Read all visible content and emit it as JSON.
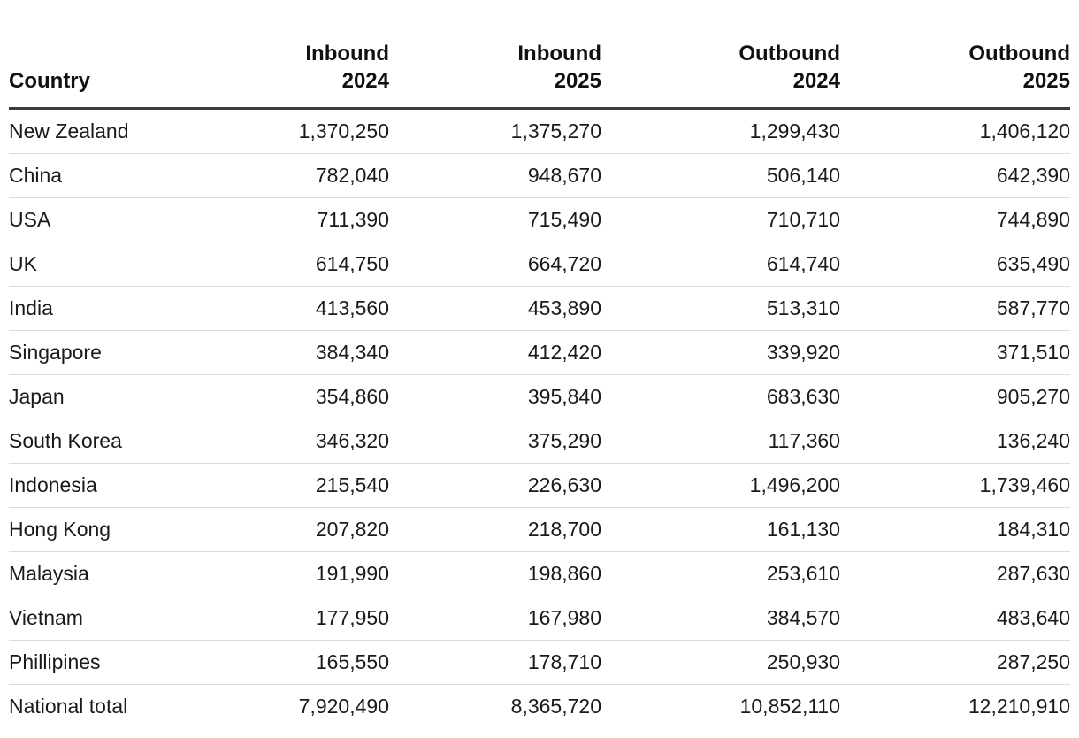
{
  "colors": {
    "background": "#ffffff",
    "text": "#1a1a1a",
    "header_rule": "#3c3c3c",
    "row_divider": "#dcdcdc"
  },
  "table": {
    "columns": [
      {
        "line1": "Country",
        "line2": ""
      },
      {
        "line1": "Inbound",
        "line2": "2024"
      },
      {
        "line1": "Inbound",
        "line2": "2025"
      },
      {
        "line1": "Outbound",
        "line2": "2024"
      },
      {
        "line1": "Outbound",
        "line2": "2025"
      }
    ],
    "rows": [
      {
        "country": "New Zealand",
        "values": [
          "1,370,250",
          "1,375,270",
          "1,299,430",
          "1,406,120"
        ]
      },
      {
        "country": "China",
        "values": [
          "782,040",
          "948,670",
          "506,140",
          "642,390"
        ]
      },
      {
        "country": "USA",
        "values": [
          "711,390",
          "715,490",
          "710,710",
          "744,890"
        ]
      },
      {
        "country": "UK",
        "values": [
          "614,750",
          "664,720",
          "614,740",
          "635,490"
        ]
      },
      {
        "country": "India",
        "values": [
          "413,560",
          "453,890",
          "513,310",
          "587,770"
        ]
      },
      {
        "country": "Singapore",
        "values": [
          "384,340",
          "412,420",
          "339,920",
          "371,510"
        ]
      },
      {
        "country": "Japan",
        "values": [
          "354,860",
          "395,840",
          "683,630",
          "905,270"
        ]
      },
      {
        "country": "South Korea",
        "values": [
          "346,320",
          "375,290",
          "117,360",
          "136,240"
        ]
      },
      {
        "country": "Indonesia",
        "values": [
          "215,540",
          "226,630",
          "1,496,200",
          "1,739,460"
        ]
      },
      {
        "country": "Hong Kong",
        "values": [
          "207,820",
          "218,700",
          "161,130",
          "184,310"
        ]
      },
      {
        "country": "Malaysia",
        "values": [
          "191,990",
          "198,860",
          "253,610",
          "287,630"
        ]
      },
      {
        "country": "Vietnam",
        "values": [
          "177,950",
          "167,980",
          "384,570",
          "483,640"
        ]
      },
      {
        "country": "Phillipines",
        "values": [
          "165,550",
          "178,710",
          "250,930",
          "287,250"
        ]
      },
      {
        "country": "National total",
        "values": [
          "7,920,490",
          "8,365,720",
          "10,852,110",
          "12,210,910"
        ]
      }
    ]
  },
  "chart_data": {
    "type": "table",
    "columns": [
      "Country",
      "Inbound 2024",
      "Inbound 2025",
      "Outbound 2024",
      "Outbound 2025"
    ],
    "rows": [
      [
        "New Zealand",
        1370250,
        1375270,
        1299430,
        1406120
      ],
      [
        "China",
        782040,
        948670,
        506140,
        642390
      ],
      [
        "USA",
        711390,
        715490,
        710710,
        744890
      ],
      [
        "UK",
        614750,
        664720,
        614740,
        635490
      ],
      [
        "India",
        413560,
        453890,
        513310,
        587770
      ],
      [
        "Singapore",
        384340,
        412420,
        339920,
        371510
      ],
      [
        "Japan",
        354860,
        395840,
        683630,
        905270
      ],
      [
        "South Korea",
        346320,
        375290,
        117360,
        136240
      ],
      [
        "Indonesia",
        215540,
        226630,
        1496200,
        1739460
      ],
      [
        "Hong Kong",
        207820,
        218700,
        161130,
        184310
      ],
      [
        "Malaysia",
        191990,
        198860,
        253610,
        287630
      ],
      [
        "Vietnam",
        177950,
        167980,
        384570,
        483640
      ],
      [
        "Phillipines",
        165550,
        178710,
        250930,
        287250
      ],
      [
        "National total",
        7920490,
        8365720,
        10852110,
        12210910
      ]
    ]
  }
}
